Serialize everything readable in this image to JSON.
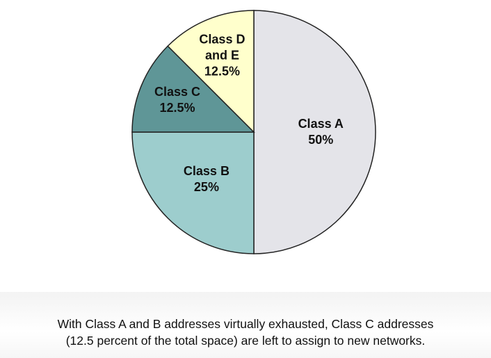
{
  "chart_data": {
    "type": "pie",
    "categories": [
      "Class A",
      "Class B",
      "Class C",
      "Class D and E"
    ],
    "values": [
      50,
      25,
      12.5,
      12.5
    ],
    "value_labels": [
      "50%",
      "25%",
      "12.5%",
      "12.5%"
    ],
    "colors": [
      "#e4e4e9",
      "#9dcdcd",
      "#5f9697",
      "#ffffcc"
    ],
    "caption": [
      "With Class A and B addresses virtually exhausted, Class C addresses",
      "(12.5 percent of the total space) are left to assign to new networks."
    ]
  }
}
